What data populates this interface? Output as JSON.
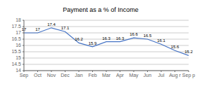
{
  "chart_data": {
    "type": "line",
    "title": "Payment as a % of Income",
    "categories": [
      "Sep",
      "Oct",
      "Nov",
      "Dec",
      "Jan",
      "Feb",
      "Mar",
      "Apr",
      "May",
      "Jun",
      "Jul",
      "Aug r",
      "Sep p"
    ],
    "values": [
      17.0,
      17.0,
      17.4,
      17.1,
      16.2,
      15.9,
      16.3,
      16.3,
      16.6,
      16.5,
      16.1,
      15.6,
      15.2
    ],
    "color": "#4472C4",
    "ylim": [
      14,
      18
    ],
    "yticks": [
      14,
      14.5,
      15,
      15.5,
      16,
      16.5,
      17,
      17.5,
      18
    ],
    "grid": true,
    "data_labels": true
  }
}
